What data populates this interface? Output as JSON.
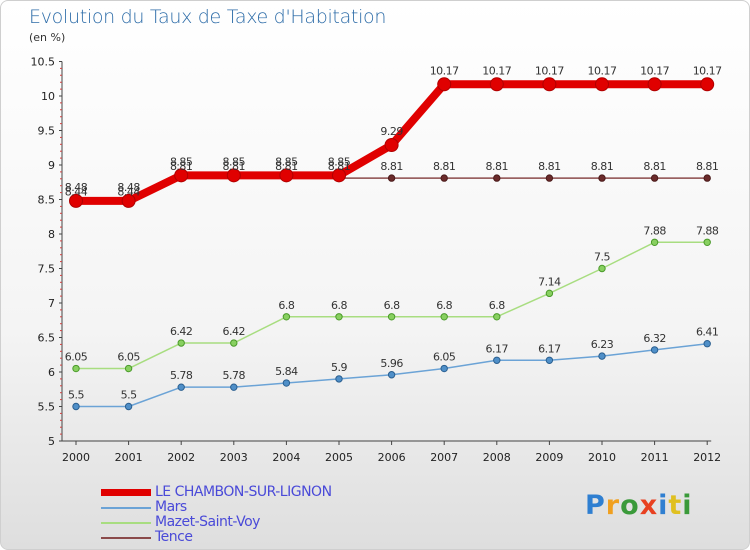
{
  "title": "Evolution du Taux de Taxe d'Habitation",
  "unit_label": "(en %)",
  "logo": {
    "text": "Proxiti",
    "colors": [
      "#2f7fd1",
      "#f0a020",
      "#3a9a3a",
      "#e84020",
      "#2f7fd1",
      "#e0c020",
      "#3a9a3a"
    ]
  },
  "chart_data": {
    "type": "line",
    "title": "Evolution du Taux de Taxe d'Habitation",
    "ylabel": "(en %)",
    "xlabel": "",
    "x": [
      "2000",
      "2001",
      "2002",
      "2003",
      "2004",
      "2005",
      "2006",
      "2007",
      "2008",
      "2009",
      "2010",
      "2011",
      "2012"
    ],
    "ylim": [
      5,
      10.5
    ],
    "yticks": [
      "5",
      "5.5",
      "6",
      "6.5",
      "7",
      "7.5",
      "8",
      "8.5",
      "9",
      "9.5",
      "10",
      "10.5"
    ],
    "grid": false,
    "legend_position": "bottom-left",
    "series": [
      {
        "name": "LE CHAMBON-SUR-LIGNON",
        "color": "#e00000",
        "values": [
          8.48,
          8.48,
          8.85,
          8.85,
          8.85,
          8.85,
          9.29,
          10.17,
          10.17,
          10.17,
          10.17,
          10.17,
          10.17
        ],
        "labels": [
          "8.48",
          "8.48",
          "8.85",
          "8.85",
          "8.85",
          "8.85",
          "9.29",
          "10.17",
          "10.17",
          "10.17",
          "10.17",
          "10.17",
          "10.17"
        ]
      },
      {
        "name": "Mars",
        "color": "#6ba3d6",
        "values": [
          5.5,
          5.5,
          5.78,
          5.78,
          5.84,
          5.9,
          5.96,
          6.05,
          6.17,
          6.17,
          6.23,
          6.32,
          6.41
        ],
        "labels": [
          "5.5",
          "5.5",
          "5.78",
          "5.78",
          "5.84",
          "5.9",
          "5.96",
          "6.05",
          "6.17",
          "6.17",
          "6.23",
          "6.32",
          "6.41"
        ]
      },
      {
        "name": "Mazet-Saint-Voy",
        "color": "#a8dd80",
        "values": [
          6.05,
          6.05,
          6.42,
          6.42,
          6.8,
          6.8,
          6.8,
          6.8,
          6.8,
          7.14,
          7.5,
          7.88,
          7.88
        ],
        "labels": [
          "6.05",
          "6.05",
          "6.42",
          "6.42",
          "6.8",
          "6.8",
          "6.8",
          "6.8",
          "6.8",
          "7.14",
          "7.5",
          "7.88",
          "7.88"
        ]
      },
      {
        "name": "Tence",
        "color": "#8a4a4a",
        "values": [
          8.44,
          8.44,
          8.81,
          8.81,
          8.81,
          8.81,
          8.81,
          8.81,
          8.81,
          8.81,
          8.81,
          8.81,
          8.81
        ],
        "labels": [
          "8.44",
          "8.44",
          "8.81",
          "8.81",
          "8.81",
          "8.81",
          "8.81",
          "8.81",
          "8.81",
          "8.81",
          "8.81",
          "8.81",
          "8.81"
        ]
      }
    ]
  }
}
